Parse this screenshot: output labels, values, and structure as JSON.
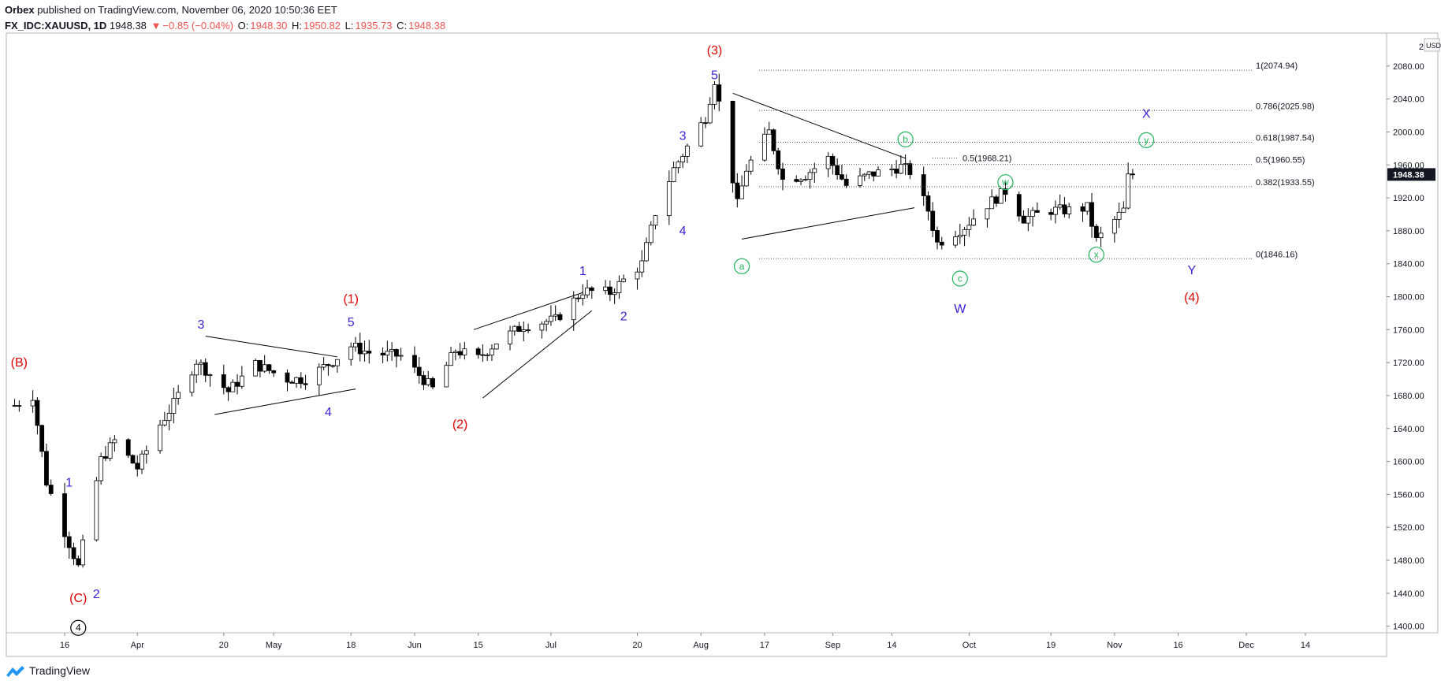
{
  "header": {
    "author": "Orbex",
    "published": " published on TradingView.com, November 06, 2020 10:50:36 EET",
    "symbol": "FX_IDC:XAUUSD, 1D",
    "last": "1948.38",
    "change": "−0.85 (−0.04%)",
    "o_label": "O:",
    "o": "1948.30",
    "h_label": "H:",
    "h": "1950.82",
    "l_label": "L:",
    "l": "1935.73",
    "c_label": "C:",
    "c": "1948.38"
  },
  "footer": {
    "brand": "TradingView"
  },
  "colors": {
    "up": "#ffffff",
    "down": "#000000",
    "wave_red": "#e00000",
    "wave_blue": "#3a1fd6",
    "wave_green": "#21b35a",
    "fib": "#555555"
  },
  "chart_data": {
    "type": "candlestick",
    "currency": "USD",
    "last_price_label": "1948.38",
    "ylim": [
      1392,
      2120
    ],
    "y_ticks": [
      1400,
      1440,
      1480,
      1520,
      1560,
      1600,
      1640,
      1680,
      1720,
      1760,
      1800,
      1840,
      1880,
      1920,
      1960,
      2000,
      2040,
      2080
    ],
    "y_tick_labels": [
      "1400.00",
      "1440.00",
      "1480.00",
      "1520.00",
      "1560.00",
      "1600.00",
      "1640.00",
      "1680.00",
      "1720.00",
      "1760.00",
      "1800.00",
      "1840.00",
      "1880.00",
      "1920.00",
      "1960.00",
      "2000.00",
      "2040.00",
      "2080.00"
    ],
    "x_ticks": [
      {
        "date": "2020-03-16",
        "label": "16"
      },
      {
        "date": "2020-04-01",
        "label": "Apr"
      },
      {
        "date": "2020-04-20",
        "label": "20"
      },
      {
        "date": "2020-05-01",
        "label": "May"
      },
      {
        "date": "2020-05-18",
        "label": "18"
      },
      {
        "date": "2020-06-01",
        "label": "Jun"
      },
      {
        "date": "2020-06-15",
        "label": "15"
      },
      {
        "date": "2020-07-01",
        "label": "Jul"
      },
      {
        "date": "2020-07-20",
        "label": "20"
      },
      {
        "date": "2020-08-03",
        "label": "Aug"
      },
      {
        "date": "2020-08-17",
        "label": "17"
      },
      {
        "date": "2020-09-01",
        "label": "Sep"
      },
      {
        "date": "2020-09-14",
        "label": "14"
      },
      {
        "date": "2020-10-01",
        "label": "Oct"
      },
      {
        "date": "2020-10-19",
        "label": "19"
      },
      {
        "date": "2020-11-02",
        "label": "Nov"
      },
      {
        "date": "2020-11-16",
        "label": "16"
      },
      {
        "date": "2020-12-01",
        "label": "Dec"
      },
      {
        "date": "2020-12-14",
        "label": "14"
      }
    ],
    "anchors": [
      [
        "2020-03-05",
        1668
      ],
      [
        "2020-03-09",
        1680
      ],
      [
        "2020-03-12",
        1575
      ],
      [
        "2020-03-16",
        1515
      ],
      [
        "2020-03-19",
        1472
      ],
      [
        "2020-03-24",
        1602
      ],
      [
        "2020-03-27",
        1625
      ],
      [
        "2020-04-01",
        1592
      ],
      [
        "2020-04-06",
        1645
      ],
      [
        "2020-04-09",
        1670
      ],
      [
        "2020-04-14",
        1722
      ],
      [
        "2020-04-21",
        1685
      ],
      [
        "2020-04-27",
        1718
      ],
      [
        "2020-05-04",
        1700
      ],
      [
        "2020-05-08",
        1700
      ],
      [
        "2020-05-14",
        1722
      ],
      [
        "2020-05-18",
        1740
      ],
      [
        "2020-05-22",
        1732
      ],
      [
        "2020-05-29",
        1728
      ],
      [
        "2020-06-05",
        1688
      ],
      [
        "2020-06-10",
        1735
      ],
      [
        "2020-06-15",
        1725
      ],
      [
        "2020-06-19",
        1745
      ],
      [
        "2020-06-25",
        1765
      ],
      [
        "2020-07-02",
        1772
      ],
      [
        "2020-07-08",
        1807
      ],
      [
        "2020-07-14",
        1805
      ],
      [
        "2020-07-21",
        1840
      ],
      [
        "2020-07-24",
        1902
      ],
      [
        "2020-07-28",
        1955
      ],
      [
        "2020-08-04",
        2018
      ],
      [
        "2020-08-06",
        2063
      ],
      [
        "2020-08-07",
        2035
      ],
      [
        "2020-08-11",
        1912
      ],
      [
        "2020-08-13",
        1955
      ],
      [
        "2020-08-18",
        2000
      ],
      [
        "2020-08-21",
        1942
      ],
      [
        "2020-08-26",
        1948
      ],
      [
        "2020-08-31",
        1968
      ],
      [
        "2020-09-04",
        1935
      ],
      [
        "2020-09-09",
        1948
      ],
      [
        "2020-09-16",
        1958
      ],
      [
        "2020-09-18",
        1952
      ],
      [
        "2020-09-22",
        1905
      ],
      [
        "2020-09-24",
        1865
      ],
      [
        "2020-09-30",
        1885
      ],
      [
        "2020-10-05",
        1912
      ],
      [
        "2020-10-09",
        1928
      ],
      [
        "2020-10-13",
        1895
      ],
      [
        "2020-10-19",
        1905
      ],
      [
        "2020-10-23",
        1905
      ],
      [
        "2020-10-27",
        1908
      ],
      [
        "2020-10-29",
        1868
      ],
      [
        "2020-11-02",
        1893
      ],
      [
        "2020-11-04",
        1905
      ],
      [
        "2020-11-05",
        1945
      ],
      [
        "2020-11-06",
        1948.38
      ]
    ],
    "fib_levels": [
      {
        "label": "1(2074.94)",
        "value": 2074.94
      },
      {
        "label": "0.786(2025.98)",
        "value": 2025.98
      },
      {
        "label": "0.618(1987.54)",
        "value": 1987.54
      },
      {
        "label": "0.5(1960.55)",
        "value": 1960.55
      },
      {
        "label": "0.382(1933.55)",
        "value": 1933.55
      },
      {
        "label": "0(1846.16)",
        "value": 1846.16
      }
    ],
    "fib_inner": {
      "label": "0.5(1968.21)",
      "value": 1968.21
    },
    "wave_labels": [
      {
        "text": "(B)",
        "date": "2020-03-06",
        "price": 1721,
        "color": "wave_red",
        "circle": false
      },
      {
        "text": "(C)",
        "date": "2020-03-19",
        "price": 1435,
        "color": "wave_red",
        "circle": false
      },
      {
        "text": "1",
        "date": "2020-03-17",
        "price": 1575,
        "color": "wave_blue",
        "circle": false
      },
      {
        "text": "2",
        "date": "2020-03-23",
        "price": 1440,
        "color": "wave_blue",
        "circle": false
      },
      {
        "text": "4",
        "date": "2020-03-19",
        "price": 1398,
        "color": "wave_black",
        "circle": true
      },
      {
        "text": "3",
        "date": "2020-04-15",
        "price": 1767,
        "color": "wave_blue",
        "circle": false
      },
      {
        "text": "4",
        "date": "2020-05-13",
        "price": 1661,
        "color": "wave_blue",
        "circle": false
      },
      {
        "text": "5",
        "date": "2020-05-18",
        "price": 1770,
        "color": "wave_blue",
        "circle": false
      },
      {
        "text": "(1)",
        "date": "2020-05-18",
        "price": 1798,
        "color": "wave_red",
        "circle": false
      },
      {
        "text": "(2)",
        "date": "2020-06-11",
        "price": 1646,
        "color": "wave_red",
        "circle": false
      },
      {
        "text": "1",
        "date": "2020-07-08",
        "price": 1832,
        "color": "wave_blue",
        "circle": false
      },
      {
        "text": "2",
        "date": "2020-07-17",
        "price": 1777,
        "color": "wave_blue",
        "circle": false
      },
      {
        "text": "3",
        "date": "2020-07-30",
        "price": 1996,
        "color": "wave_blue",
        "circle": false
      },
      {
        "text": "4",
        "date": "2020-07-30",
        "price": 1881,
        "color": "wave_blue",
        "circle": false
      },
      {
        "text": "5",
        "date": "2020-08-06",
        "price": 2070,
        "color": "wave_blue",
        "circle": false
      },
      {
        "text": "(3)",
        "date": "2020-08-06",
        "price": 2100,
        "color": "wave_red",
        "circle": false
      },
      {
        "text": "a",
        "date": "2020-08-12",
        "price": 1837,
        "color": "wave_green",
        "circle": true
      },
      {
        "text": "b",
        "date": "2020-09-17",
        "price": 1991,
        "color": "wave_green",
        "circle": true
      },
      {
        "text": "c",
        "date": "2020-09-29",
        "price": 1822,
        "color": "wave_green",
        "circle": true
      },
      {
        "text": "W",
        "date": "2020-09-29",
        "price": 1786,
        "color": "wave_blue",
        "circle": false
      },
      {
        "text": "w",
        "date": "2020-10-09",
        "price": 1939,
        "color": "wave_green",
        "circle": true
      },
      {
        "text": "x",
        "date": "2020-10-29",
        "price": 1851,
        "color": "wave_green",
        "circle": true
      },
      {
        "text": "X",
        "date": "2020-11-09",
        "price": 2023,
        "color": "wave_blue",
        "circle": false
      },
      {
        "text": "y",
        "date": "2020-11-09",
        "price": 1990,
        "color": "wave_green",
        "circle": true
      },
      {
        "text": "Y",
        "date": "2020-11-19",
        "price": 1833,
        "color": "wave_blue",
        "circle": false
      },
      {
        "text": "(4)",
        "date": "2020-11-19",
        "price": 1800,
        "color": "wave_red",
        "circle": false
      }
    ],
    "trendlines": [
      [
        "2020-04-16",
        1752,
        "2020-05-15",
        1727
      ],
      [
        "2020-04-18",
        1657,
        "2020-05-19",
        1688
      ],
      [
        "2020-06-14",
        1760,
        "2020-07-08",
        1805
      ],
      [
        "2020-06-16",
        1677,
        "2020-07-10",
        1783
      ],
      [
        "2020-08-10",
        2047,
        "2020-09-17",
        1968
      ],
      [
        "2020-08-12",
        1870,
        "2020-09-19",
        1908
      ]
    ]
  }
}
